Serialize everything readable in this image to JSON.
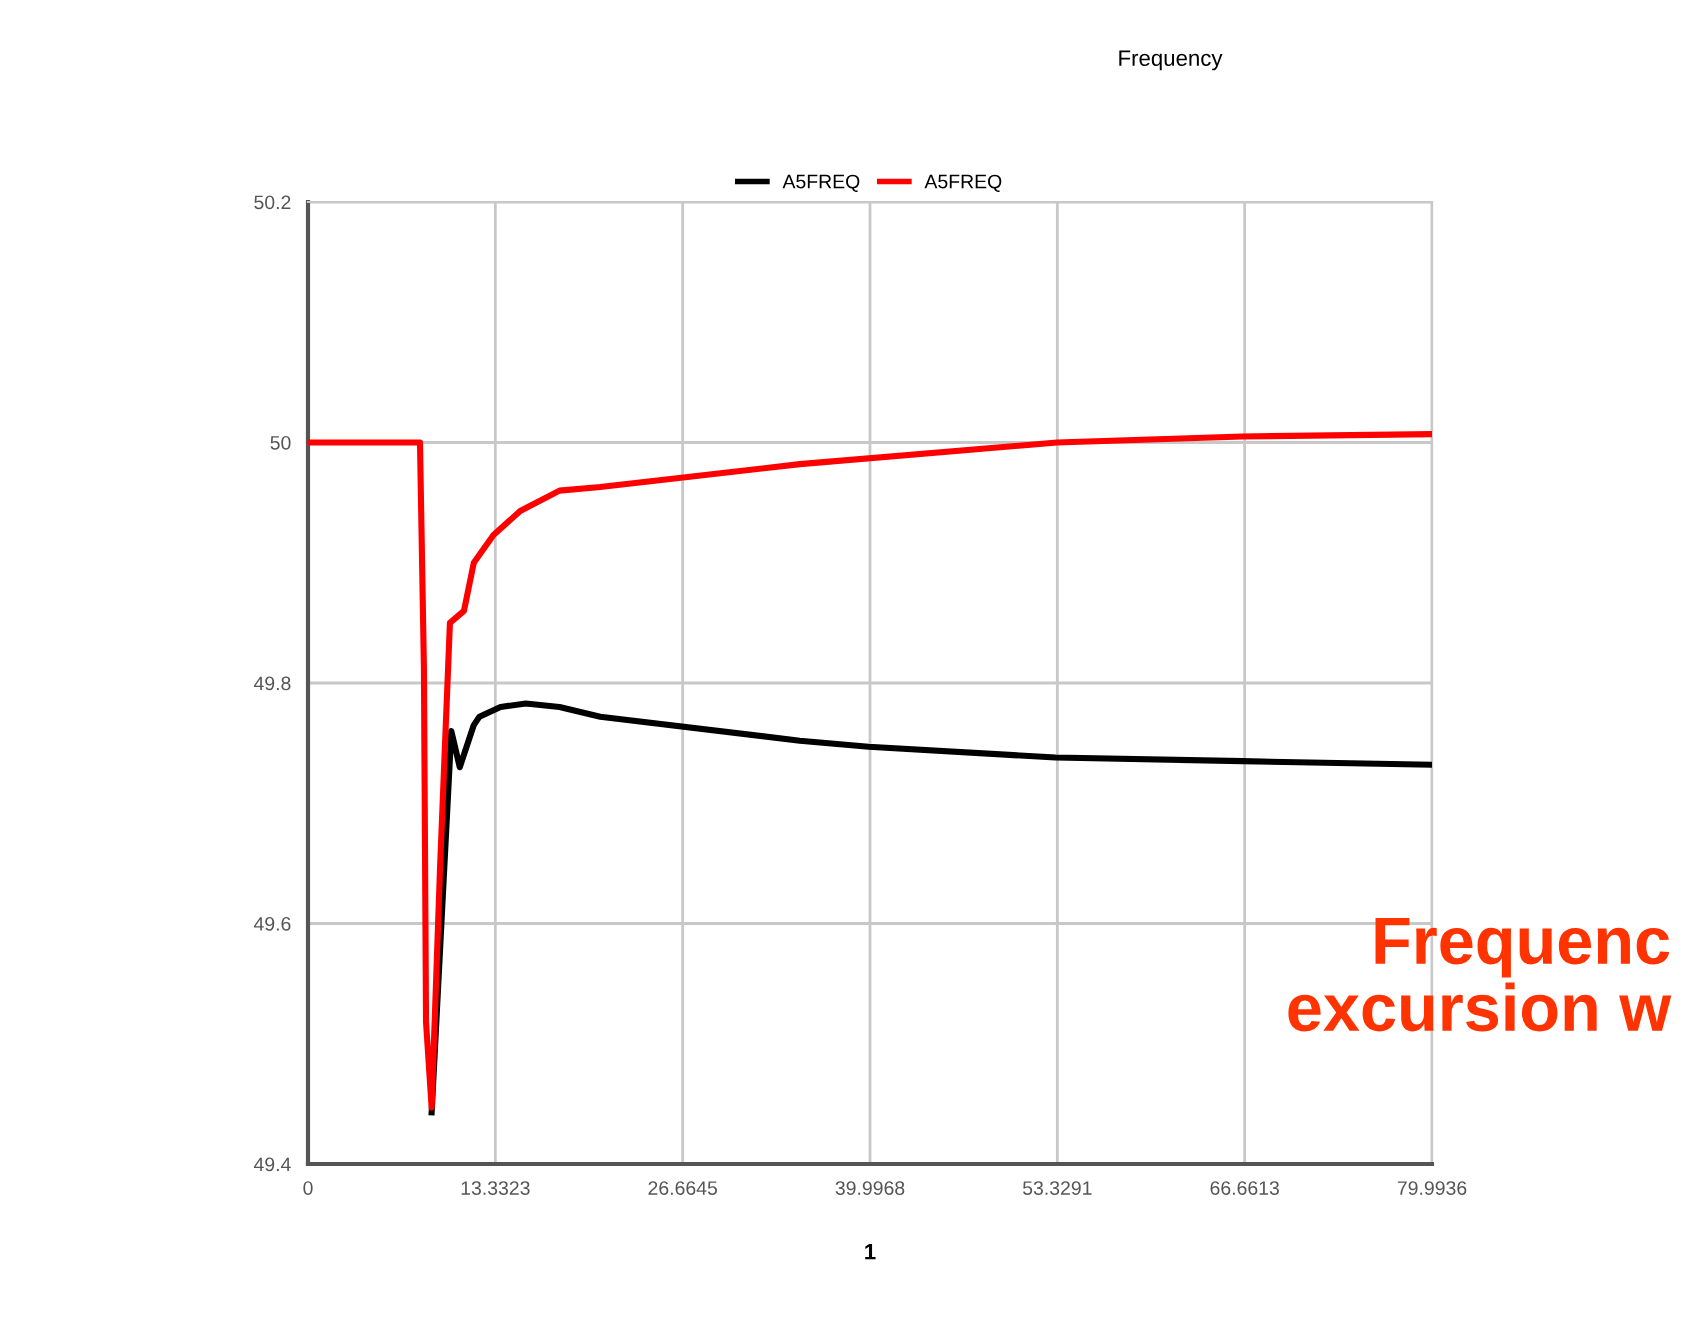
{
  "chart_data": {
    "type": "line",
    "title": "Frequency",
    "xlabel": "1",
    "legend": "top",
    "grid": true,
    "marker": "none",
    "line_style": "solid",
    "xlim": [
      0,
      79.9936
    ],
    "ylim": [
      49.4,
      50.2
    ],
    "xticks": [
      0,
      13.3323,
      26.6645,
      39.9968,
      53.3291,
      66.6613,
      79.9936
    ],
    "yticks": [
      49.4,
      49.6,
      49.8,
      50,
      50.2
    ],
    "annotations": [
      "Frequenc\nexcursion w"
    ],
    "series": [
      {
        "name": "A5FREQ",
        "color": "#000000",
        "x": [
          8.8,
          10.2,
          10.8,
          11.8,
          12.2,
          13.7,
          15.5,
          17.9,
          20.8,
          35,
          39.9,
          53.2,
          66.5,
          79.99
        ],
        "values": [
          49.443,
          49.76,
          49.73,
          49.765,
          49.772,
          49.78,
          49.783,
          49.78,
          49.772,
          49.752,
          49.747,
          49.738,
          49.735,
          49.732
        ]
      },
      {
        "name": "A5FREQ",
        "color": "#ff0000",
        "x": [
          0,
          7.83,
          7.97,
          8.25,
          8.4,
          8.8,
          9.4,
          10.1,
          11.1,
          11.8,
          13.2,
          15.1,
          17.9,
          20.8,
          35,
          53.3,
          66.5,
          79.99
        ],
        "values": [
          50,
          50,
          50,
          49.813,
          49.518,
          49.447,
          49.647,
          49.85,
          49.86,
          49.9,
          49.923,
          49.943,
          49.96,
          49.963,
          49.982,
          50.0,
          50.005,
          50.007
        ]
      }
    ]
  }
}
